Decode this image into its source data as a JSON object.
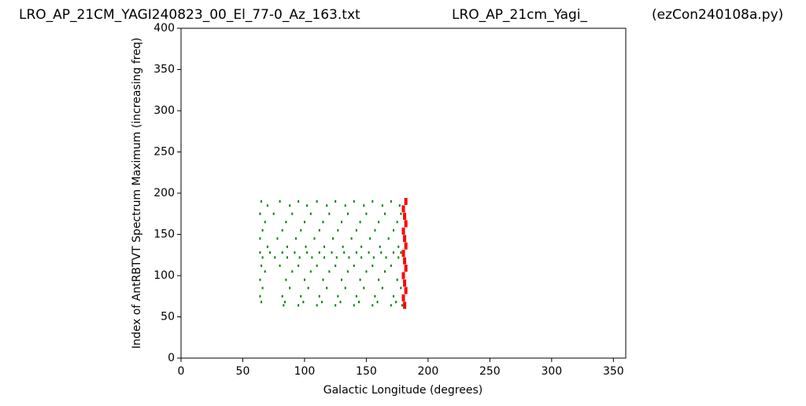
{
  "chart_data": {
    "type": "scatter",
    "titles": [
      "LRO_AP_21CM_YAGI240823_00_El_77-0_Az_163.txt",
      "LRO_AP_21cm_Yagi_",
      "(ezCon240108a.py)"
    ],
    "x_label": "Galactic Longitude (degrees)",
    "y_label": "Index of AntRBTVT Spectrum Maximum (increasing freq)",
    "xlim": [
      0,
      360
    ],
    "xticks": [
      0,
      50,
      100,
      150,
      200,
      250,
      300,
      350
    ],
    "ylim": [
      0,
      400
    ],
    "yticks": [
      0,
      50,
      100,
      150,
      200,
      250,
      300,
      350,
      400
    ],
    "series": [
      {
        "color": "#008000",
        "x": [
          65,
          80,
          95,
          110,
          125,
          140,
          155,
          170,
          70,
          88,
          102,
          118,
          133,
          148,
          163,
          177,
          64,
          75,
          90,
          105,
          120,
          135,
          150,
          165,
          178,
          68,
          85,
          100,
          115,
          130,
          145,
          160,
          175,
          66,
          82,
          97,
          112,
          127,
          142,
          157,
          172,
          64,
          78,
          93,
          108,
          123,
          138,
          153,
          168,
          70,
          86,
          101,
          116,
          131,
          146,
          161,
          176,
          64,
          72,
          82,
          92,
          102,
          112,
          122,
          132,
          142,
          152,
          162,
          172,
          178,
          66,
          76,
          86,
          96,
          106,
          116,
          126,
          136,
          146,
          156,
          166,
          176,
          65,
          80,
          95,
          110,
          125,
          140,
          155,
          170,
          68,
          90,
          105,
          120,
          135,
          150,
          165,
          64,
          85,
          100,
          115,
          130,
          145,
          160,
          175,
          66,
          88,
          103,
          118,
          133,
          148,
          163,
          178,
          64,
          82,
          97,
          112,
          127,
          142,
          157,
          172,
          65,
          84,
          99,
          114,
          129,
          144,
          159,
          174,
          83,
          95,
          110,
          125,
          140,
          155,
          170,
          179
        ],
        "values": [
          190,
          190,
          190,
          190,
          190,
          190,
          190,
          190,
          185,
          185,
          185,
          185,
          185,
          185,
          185,
          185,
          175,
          175,
          175,
          175,
          175,
          175,
          175,
          175,
          175,
          165,
          165,
          165,
          165,
          165,
          165,
          165,
          165,
          155,
          155,
          155,
          155,
          155,
          155,
          155,
          155,
          145,
          145,
          145,
          145,
          145,
          145,
          145,
          145,
          135,
          135,
          135,
          135,
          135,
          135,
          135,
          135,
          128,
          128,
          128,
          128,
          128,
          128,
          128,
          128,
          128,
          128,
          128,
          128,
          128,
          122,
          122,
          122,
          122,
          122,
          122,
          122,
          122,
          122,
          122,
          122,
          122,
          112,
          112,
          112,
          112,
          112,
          112,
          112,
          112,
          105,
          105,
          105,
          105,
          105,
          105,
          105,
          95,
          95,
          95,
          95,
          95,
          95,
          95,
          95,
          85,
          85,
          85,
          85,
          85,
          85,
          85,
          85,
          75,
          75,
          75,
          75,
          75,
          75,
          75,
          75,
          68,
          68,
          68,
          68,
          68,
          68,
          68,
          68,
          64,
          64,
          64,
          64,
          64,
          64,
          64,
          64
        ]
      },
      {
        "color": "#ff0000",
        "x": [
          181,
          180,
          182,
          181,
          180,
          182,
          181,
          180,
          182,
          181,
          180,
          182,
          181,
          180,
          182
        ],
        "values": [
          64,
          73,
          82,
          91,
          100,
          109,
          118,
          127,
          136,
          145,
          154,
          163,
          172,
          181,
          190
        ]
      }
    ]
  }
}
